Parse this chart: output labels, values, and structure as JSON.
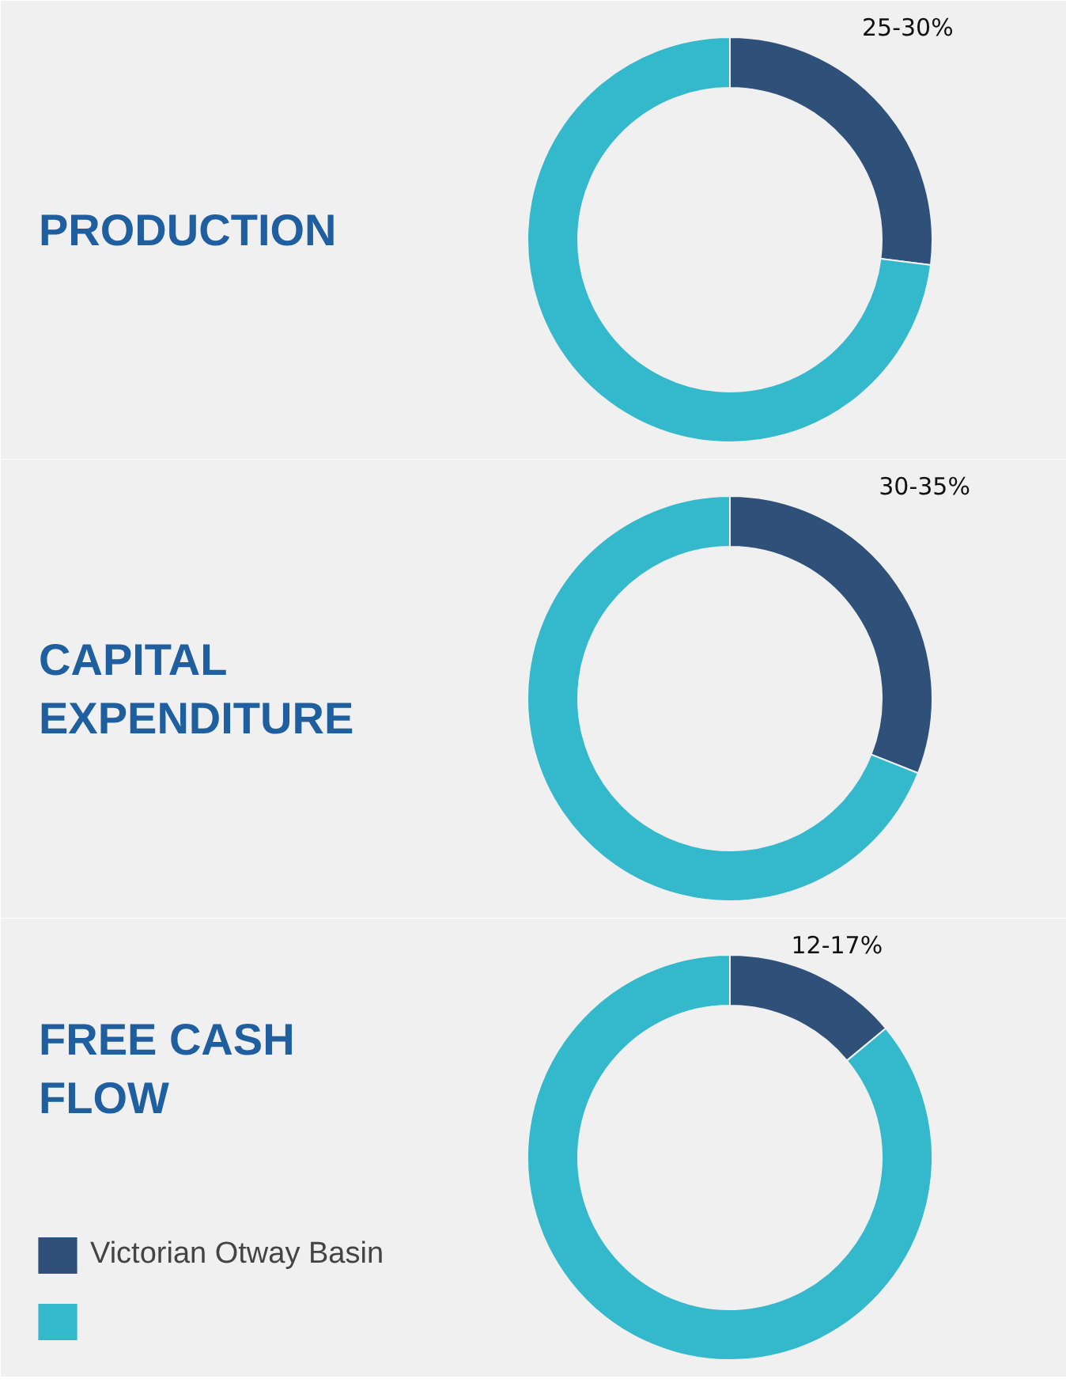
{
  "chart_data": [
    {
      "type": "donut",
      "title": "PRODUCTION",
      "values": [
        27,
        73
      ],
      "colors": [
        "#2f5179",
        "#33b8cc"
      ],
      "annotations": [
        "25-30%"
      ]
    },
    {
      "type": "donut",
      "title": "CAPITAL\nEXPENDITURE",
      "values": [
        31,
        69
      ],
      "colors": [
        "#2f5179",
        "#33b8cc"
      ],
      "annotations": [
        "30-35%"
      ]
    },
    {
      "type": "donut",
      "title": "FREE CASH\nFLOW",
      "categories": [
        "Victorian Otway Basin",
        null
      ],
      "values": [
        14,
        86
      ],
      "colors": [
        "#2f5179",
        "#33b8cc"
      ],
      "annotations": [
        "12-17%"
      ],
      "legend": "bottom left"
    }
  ]
}
